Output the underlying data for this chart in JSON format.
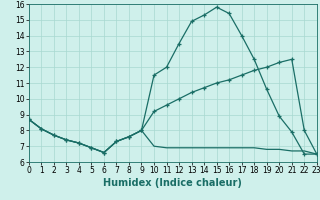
{
  "xlabel": "Humidex (Indice chaleur)",
  "background_color": "#cff0eb",
  "grid_color": "#a8d8d0",
  "line_color": "#1a6e66",
  "hours": [
    0,
    1,
    2,
    3,
    4,
    5,
    6,
    7,
    8,
    9,
    10,
    11,
    12,
    13,
    14,
    15,
    16,
    17,
    18,
    19,
    20,
    21,
    22,
    23
  ],
  "line1": [
    8.7,
    8.1,
    7.7,
    7.4,
    7.2,
    6.9,
    6.6,
    7.3,
    7.6,
    8.0,
    11.5,
    12.0,
    13.5,
    14.9,
    15.3,
    15.8,
    15.4,
    14.0,
    12.5,
    10.6,
    8.9,
    7.9,
    6.5,
    6.5
  ],
  "line2": [
    8.7,
    8.1,
    7.7,
    7.4,
    7.2,
    6.9,
    6.6,
    7.3,
    7.6,
    8.0,
    9.2,
    9.6,
    10.0,
    10.4,
    10.7,
    11.0,
    11.2,
    11.5,
    11.8,
    12.0,
    12.3,
    12.5,
    8.0,
    6.5
  ],
  "line3": [
    8.7,
    8.1,
    7.7,
    7.4,
    7.2,
    6.9,
    6.6,
    7.3,
    7.6,
    8.0,
    7.0,
    6.9,
    6.9,
    6.9,
    6.9,
    6.9,
    6.9,
    6.9,
    6.9,
    6.8,
    6.8,
    6.7,
    6.7,
    6.5
  ],
  "ylim": [
    6,
    16
  ],
  "xlim": [
    0,
    23
  ],
  "yticks": [
    6,
    7,
    8,
    9,
    10,
    11,
    12,
    13,
    14,
    15,
    16
  ],
  "xticks": [
    0,
    1,
    2,
    3,
    4,
    5,
    6,
    7,
    8,
    9,
    10,
    11,
    12,
    13,
    14,
    15,
    16,
    17,
    18,
    19,
    20,
    21,
    22,
    23
  ],
  "tick_fontsize": 5.5,
  "axis_fontsize": 7
}
